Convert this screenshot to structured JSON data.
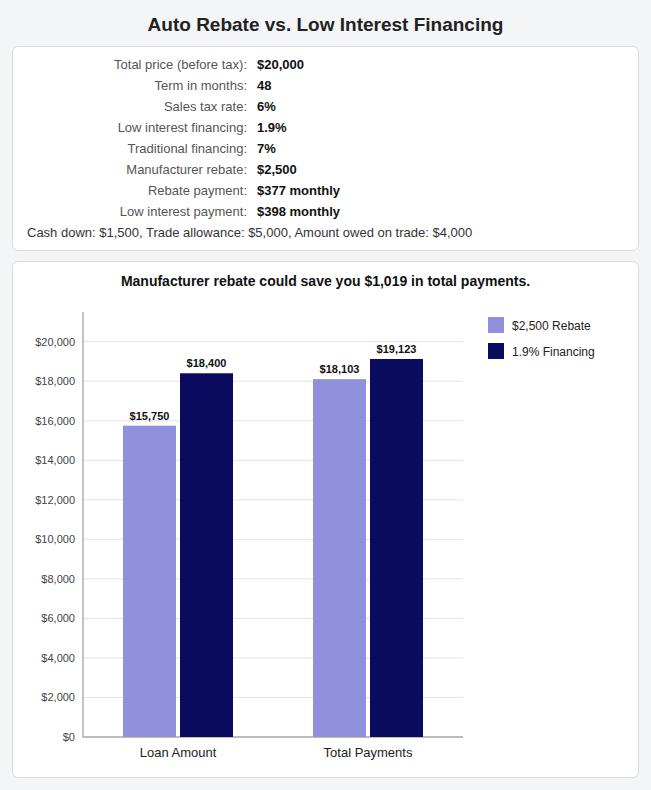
{
  "chart_data": {
    "type": "bar",
    "title": "Auto Rebate vs. Low Interest Financing",
    "subtitle": "Manufacturer rebate could save you $1,019 in total payments.",
    "annotations": [
      "Total price (before tax):",
      "$20,000",
      "Term in months:",
      "48",
      "Sales tax rate:",
      "6%",
      "Low interest financing:",
      "1.9%",
      "Traditional financing:",
      "7%",
      "Manufacturer rebate:",
      "$2,500",
      "Rebate payment:",
      "$377 monthly",
      "Low interest payment:",
      "$398 monthly",
      "Cash down: $1,500, Trade allowance: $5,000, Amount owed on trade: $4,000"
    ],
    "categories": [
      "Loan Amount",
      "Total Payments"
    ],
    "series": [
      {
        "name": "$2,500 Rebate",
        "color": "#9090dd",
        "values": [
          15750,
          18103
        ],
        "value_labels": [
          "$15,750",
          "$18,103"
        ]
      },
      {
        "name": "1.9% Financing",
        "color": "#0a0a5e",
        "values": [
          18400,
          19123
        ],
        "value_labels": [
          "$18,400",
          "$19,123"
        ]
      }
    ],
    "ylim": [
      0,
      21500
    ],
    "yticks": [
      {
        "value": 0,
        "label": "$0"
      },
      {
        "value": 2000,
        "label": "$2,000"
      },
      {
        "value": 4000,
        "label": "$4,000"
      },
      {
        "value": 6000,
        "label": "$6,000"
      },
      {
        "value": 8000,
        "label": "$8,000"
      },
      {
        "value": 10000,
        "label": "$10,000"
      },
      {
        "value": 12000,
        "label": "$12,000"
      },
      {
        "value": 14000,
        "label": "$14,000"
      },
      {
        "value": 16000,
        "label": "$16,000"
      },
      {
        "value": 18000,
        "label": "$18,000"
      },
      {
        "value": 20000,
        "label": "$20,000"
      }
    ],
    "grid": true,
    "data_labels": true,
    "legend": "right"
  }
}
